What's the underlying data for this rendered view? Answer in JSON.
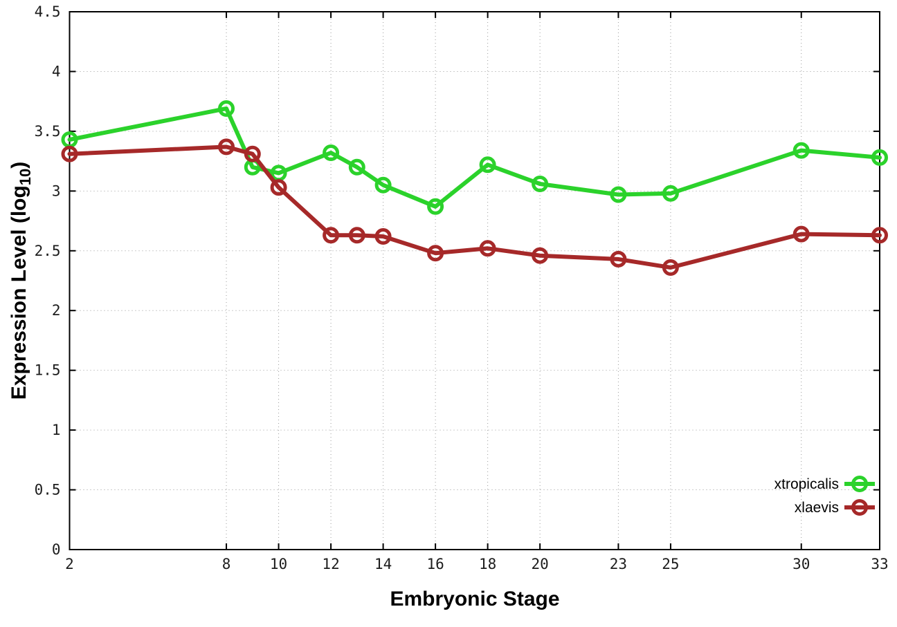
{
  "figure": {
    "background": "#ffffff",
    "border_color": "#000000",
    "grid_color": "#9a9a9a"
  },
  "chart_data": {
    "type": "line",
    "title": "",
    "xlabel": "Embryonic Stage",
    "ylabel": "Expression Level (log10)",
    "ylabel_parts": {
      "main": "Expression Level (log",
      "sub": "10",
      "end": ")"
    },
    "xlim": [
      2,
      33
    ],
    "ylim": [
      0,
      4.5
    ],
    "xticks": [
      2,
      8,
      10,
      12,
      14,
      16,
      18,
      20,
      23,
      25,
      30,
      33
    ],
    "yticks": [
      0,
      0.5,
      1,
      1.5,
      2,
      2.5,
      3,
      3.5,
      4,
      4.5
    ],
    "grid": true,
    "legend_position": "bottom-right",
    "x": [
      2,
      8,
      9,
      10,
      12,
      13,
      14,
      16,
      18,
      20,
      23,
      25,
      30,
      33
    ],
    "series": [
      {
        "name": "xtropicalis",
        "color": "#2bd22b",
        "values": [
          3.43,
          3.69,
          3.2,
          3.15,
          3.32,
          3.2,
          3.05,
          2.87,
          3.22,
          3.06,
          2.97,
          2.98,
          3.34,
          3.28
        ]
      },
      {
        "name": "xlaevis",
        "color": "#a62929",
        "values": [
          3.31,
          3.37,
          3.31,
          3.03,
          2.63,
          2.63,
          2.62,
          2.48,
          2.52,
          2.46,
          2.43,
          2.36,
          2.64,
          2.63
        ]
      }
    ]
  }
}
